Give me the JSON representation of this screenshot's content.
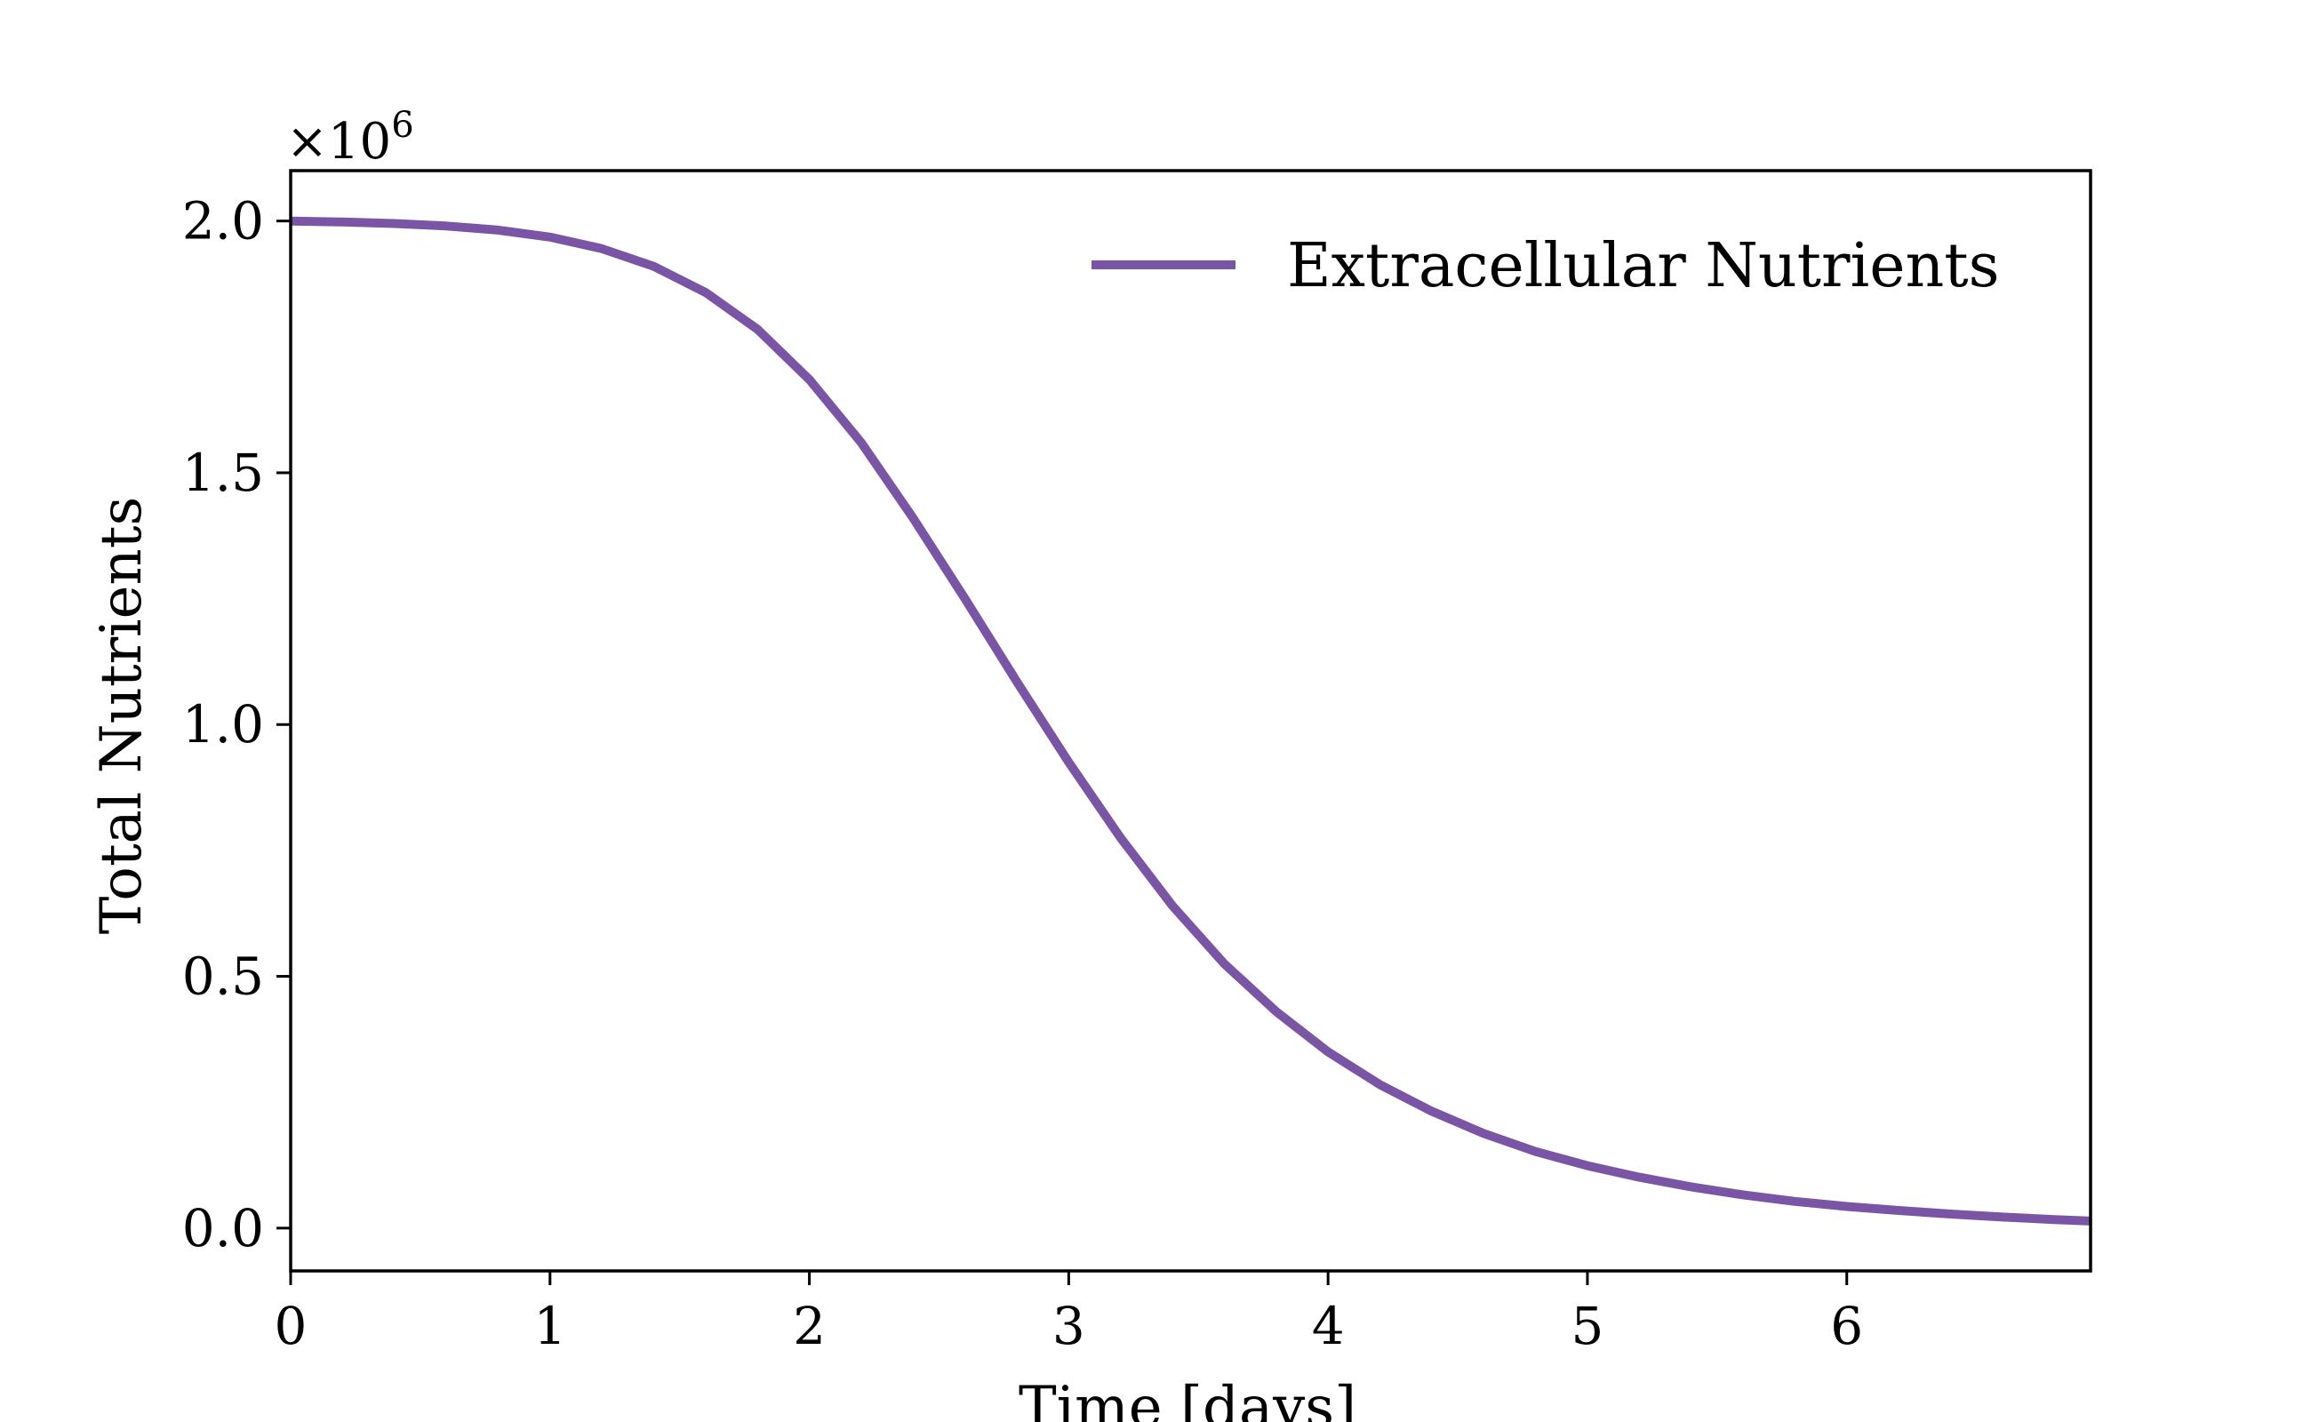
{
  "chart_data": {
    "type": "line",
    "title": "",
    "xlabel": "Time [days]",
    "ylabel": "Total Nutrients",
    "y_offset_label": "×10",
    "y_offset_exponent": "6",
    "xlim": [
      0,
      6.94
    ],
    "ylim": [
      -0.085,
      2.1
    ],
    "x_ticks": [
      0,
      1,
      2,
      3,
      4,
      5,
      6
    ],
    "x_tick_labels": [
      "0",
      "1",
      "2",
      "3",
      "4",
      "5",
      "6"
    ],
    "y_ticks": [
      0.0,
      0.5,
      1.0,
      1.5,
      2.0
    ],
    "y_tick_labels": [
      "0.0",
      "0.5",
      "1.0",
      "1.5",
      "2.0"
    ],
    "grid": false,
    "legend_position": "top-right",
    "series": [
      {
        "name": "Extracellular Nutrients",
        "color": "#7b55a5",
        "x": [
          0,
          0.2,
          0.4,
          0.6,
          0.8,
          1.0,
          1.2,
          1.4,
          1.6,
          1.8,
          2.0,
          2.2,
          2.4,
          2.6,
          2.8,
          3.0,
          3.2,
          3.4,
          3.6,
          3.8,
          4.0,
          4.2,
          4.4,
          4.6,
          4.8,
          5.0,
          5.2,
          5.4,
          5.6,
          5.8,
          6.0,
          6.2,
          6.4,
          6.6,
          6.8,
          6.94
        ],
        "y": [
          2.0,
          1.998,
          1.995,
          1.99,
          1.982,
          1.968,
          1.945,
          1.91,
          1.858,
          1.785,
          1.685,
          1.56,
          1.41,
          1.25,
          1.085,
          0.925,
          0.775,
          0.64,
          0.525,
          0.43,
          0.35,
          0.285,
          0.232,
          0.188,
          0.152,
          0.124,
          0.101,
          0.082,
          0.066,
          0.053,
          0.043,
          0.035,
          0.028,
          0.022,
          0.017,
          0.014
        ]
      }
    ]
  }
}
